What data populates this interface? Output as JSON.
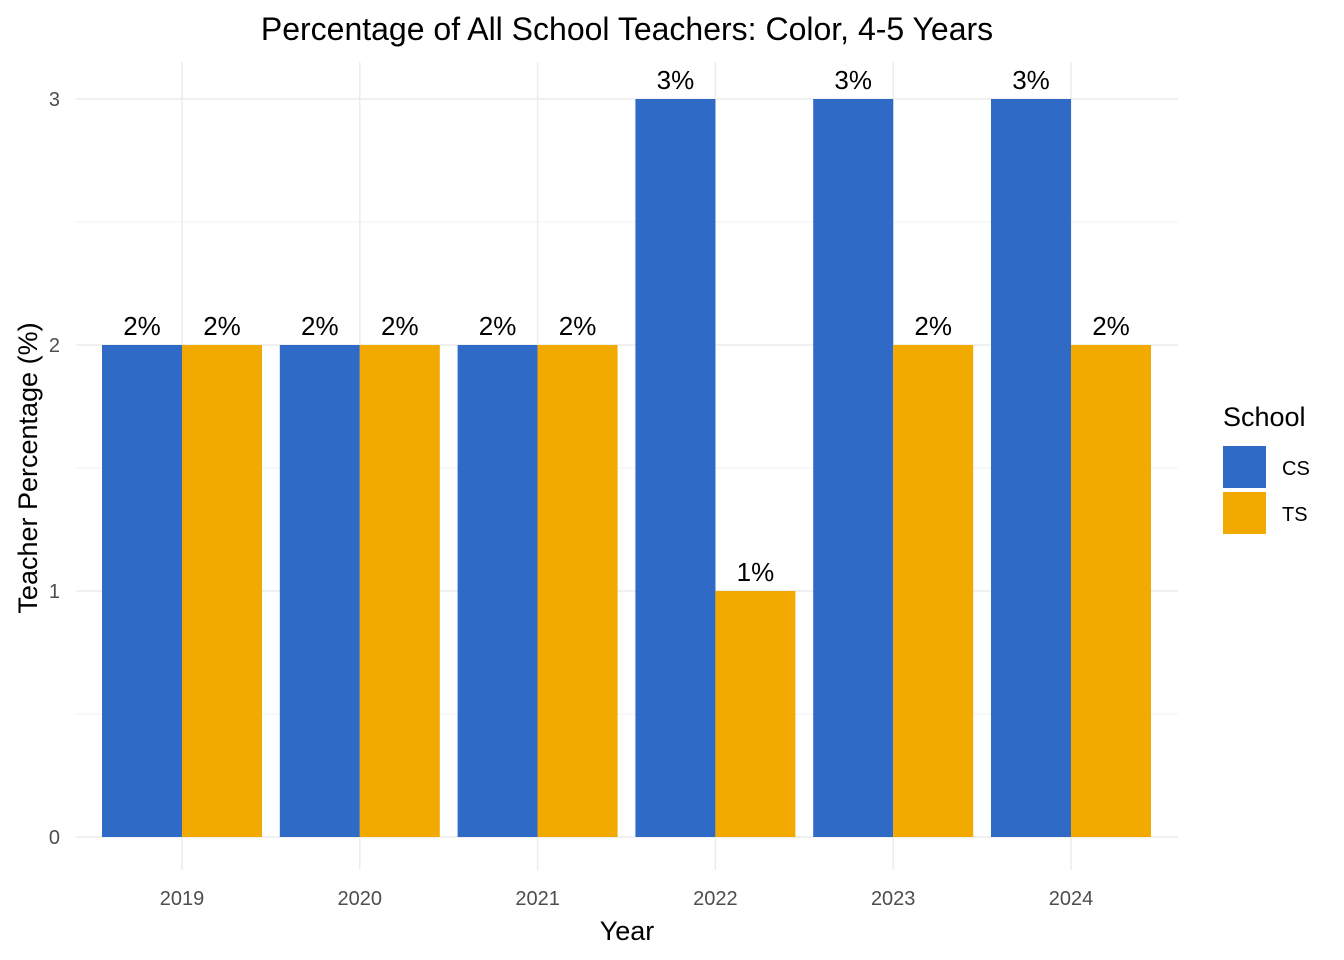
{
  "chart_data": {
    "type": "bar",
    "title": "Percentage of All School Teachers: Color, 4-5 Years",
    "xlabel": "Year",
    "ylabel": "Teacher Percentage (%)",
    "categories": [
      "2019",
      "2020",
      "2021",
      "2022",
      "2023",
      "2024"
    ],
    "series": [
      {
        "name": "CS",
        "color": "#2E6AC6",
        "values": [
          2,
          2,
          2,
          3,
          3,
          3
        ],
        "labels": [
          "2%",
          "2%",
          "2%",
          "3%",
          "3%",
          "3%"
        ]
      },
      {
        "name": "TS",
        "color": "#F2A900",
        "values": [
          2,
          2,
          2,
          1,
          2,
          2
        ],
        "labels": [
          "2%",
          "2%",
          "2%",
          "1%",
          "2%",
          "2%"
        ]
      }
    ],
    "ylim": [
      0,
      3
    ],
    "yticks": [
      0,
      1,
      2,
      3
    ],
    "ytick_labels": [
      "0",
      "1",
      "2",
      "3"
    ],
    "grid": true,
    "legend": {
      "title": "School",
      "position": "right"
    }
  }
}
